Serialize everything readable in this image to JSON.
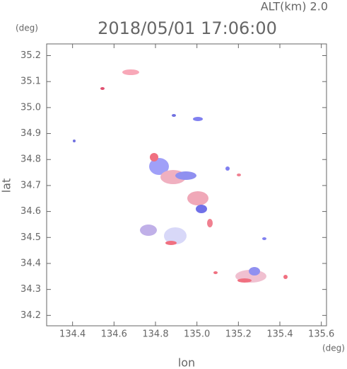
{
  "chart_data": {
    "type": "scatter",
    "title": "2018/05/01 17:06:00",
    "subtitle": "ALT(km) 2.0",
    "x_label": "lon",
    "y_label": "lat",
    "x_unit": "(deg)",
    "y_unit": "(deg)",
    "xlim": [
      134.275,
      135.625
    ],
    "ylim": [
      34.16,
      35.245
    ],
    "xticks": [
      134.4,
      134.6,
      134.8,
      {
        "value": 135,
        "label": "135.0"
      },
      135.2,
      135.4,
      135.6
    ],
    "yticks": [
      34.2,
      34.3,
      34.4,
      34.5,
      34.6,
      34.7,
      34.8,
      34.9,
      {
        "value": 35,
        "label": "35.0"
      },
      35.1,
      35.2
    ]
  }
}
